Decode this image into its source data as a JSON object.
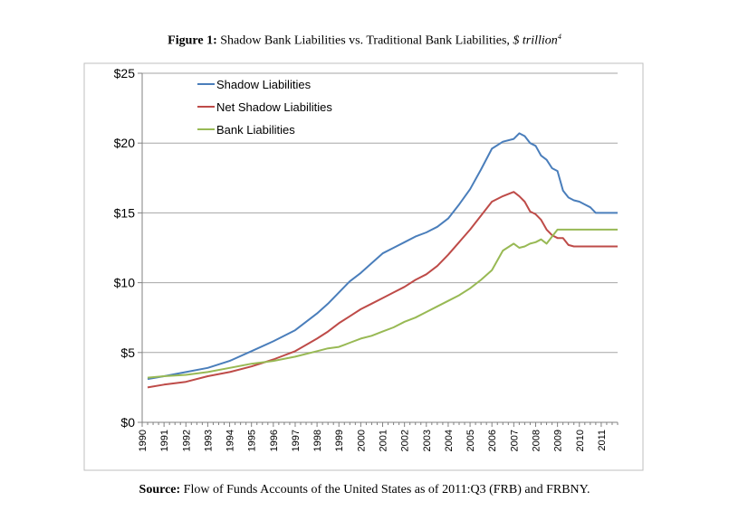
{
  "figure": {
    "label": "Figure 1:",
    "title": "Shadow Bank Liabilities vs.  Traditional Bank Liabilities,",
    "unit": "$ trillion",
    "footnote": "4"
  },
  "source": {
    "label": "Source:",
    "text": "Flow of Funds Accounts of the United States as of 2011:Q3 (FRB) and FRBNY."
  },
  "chart_data": {
    "type": "line",
    "title": "",
    "xlabel": "",
    "ylabel": "",
    "ylim": [
      0,
      25
    ],
    "xlim": [
      1990.0,
      2011.75
    ],
    "y_ticks": [
      0,
      5,
      10,
      15,
      20,
      25
    ],
    "y_tick_labels": [
      "$0",
      "$5",
      "$10",
      "$15",
      "$20",
      "$25"
    ],
    "x_tick_labels": [
      "1990",
      "1991",
      "1992",
      "1993",
      "1994",
      "1995",
      "1996",
      "1997",
      "1998",
      "1999",
      "2000",
      "2001",
      "2002",
      "2003",
      "2004",
      "2005",
      "2006",
      "2007",
      "2008",
      "2009",
      "2010",
      "2011"
    ],
    "grid": "horizontal",
    "legend": "top-left",
    "series": [
      {
        "name": "Shadow Liabilities",
        "color": "#4a7ebb",
        "x": [
          1990.25,
          1991,
          1992,
          1993,
          1994,
          1995,
          1996,
          1997,
          1998,
          1998.5,
          1999,
          1999.5,
          2000,
          2000.5,
          2001,
          2001.5,
          2002,
          2002.5,
          2003,
          2003.5,
          2004,
          2004.5,
          2005,
          2005.5,
          2006,
          2006.5,
          2007,
          2007.25,
          2007.5,
          2007.75,
          2008,
          2008.25,
          2008.5,
          2008.75,
          2009,
          2009.25,
          2009.5,
          2009.75,
          2010,
          2010.25,
          2010.5,
          2010.75,
          2011,
          2011.25,
          2011.5,
          2011.75
        ],
        "y": [
          3.1,
          3.3,
          3.6,
          3.9,
          4.4,
          5.1,
          5.8,
          6.6,
          7.8,
          8.5,
          9.3,
          10.1,
          10.7,
          11.4,
          12.1,
          12.5,
          12.9,
          13.3,
          13.6,
          14.0,
          14.6,
          15.6,
          16.7,
          18.1,
          19.6,
          20.1,
          20.3,
          20.7,
          20.5,
          20.0,
          19.8,
          19.1,
          18.8,
          18.2,
          18.0,
          16.6,
          16.1,
          15.9,
          15.8,
          15.6,
          15.4,
          15.0,
          15.0,
          15.0,
          15.0,
          15.0
        ],
        "note": "Shadow series ends near 15.0 at 2011.5"
      },
      {
        "name": "Net Shadow Liabilities",
        "color": "#be4b48",
        "x": [
          1990.25,
          1991,
          1992,
          1993,
          1994,
          1995,
          1996,
          1997,
          1998,
          1998.5,
          1999,
          1999.5,
          2000,
          2000.5,
          2001,
          2001.5,
          2002,
          2002.5,
          2003,
          2003.5,
          2004,
          2004.5,
          2005,
          2005.5,
          2006,
          2006.5,
          2007,
          2007.25,
          2007.5,
          2007.75,
          2008,
          2008.25,
          2008.5,
          2008.75,
          2009,
          2009.25,
          2009.5,
          2009.75,
          2010,
          2010.25,
          2010.5,
          2010.75,
          2011,
          2011.25,
          2011.5,
          2011.75
        ],
        "y": [
          2.5,
          2.7,
          2.9,
          3.3,
          3.6,
          4.0,
          4.5,
          5.1,
          6.0,
          6.5,
          7.1,
          7.6,
          8.1,
          8.5,
          8.9,
          9.3,
          9.7,
          10.2,
          10.6,
          11.2,
          12.0,
          12.9,
          13.8,
          14.8,
          15.8,
          16.2,
          16.5,
          16.2,
          15.8,
          15.1,
          14.9,
          14.5,
          13.8,
          13.4,
          13.2,
          13.2,
          12.7,
          12.6,
          12.6,
          12.6,
          12.6,
          12.6,
          12.6,
          12.6,
          12.6,
          12.6
        ]
      },
      {
        "name": "Bank Liabilities",
        "color": "#98b954",
        "x": [
          1990.25,
          1991,
          1992,
          1993,
          1994,
          1995,
          1996,
          1997,
          1998,
          1998.5,
          1999,
          1999.5,
          2000,
          2000.5,
          2001,
          2001.5,
          2002,
          2002.5,
          2003,
          2003.5,
          2004,
          2004.5,
          2005,
          2005.5,
          2006,
          2006.5,
          2007,
          2007.25,
          2007.5,
          2007.75,
          2008,
          2008.25,
          2008.5,
          2008.75,
          2009,
          2009.25,
          2009.5,
          2009.75,
          2010,
          2010.25,
          2010.5,
          2010.75,
          2011,
          2011.25,
          2011.5,
          2011.75
        ],
        "y": [
          3.2,
          3.3,
          3.4,
          3.6,
          3.9,
          4.2,
          4.4,
          4.7,
          5.1,
          5.3,
          5.4,
          5.7,
          6.0,
          6.2,
          6.5,
          6.8,
          7.2,
          7.5,
          7.9,
          8.3,
          8.7,
          9.1,
          9.6,
          10.2,
          10.9,
          12.3,
          12.8,
          12.5,
          12.6,
          12.8,
          12.9,
          13.1,
          12.8,
          13.3,
          13.8,
          13.8,
          13.8,
          13.8,
          13.8,
          13.8,
          13.8,
          13.8,
          13.8,
          13.8,
          13.8,
          13.8
        ]
      }
    ]
  }
}
